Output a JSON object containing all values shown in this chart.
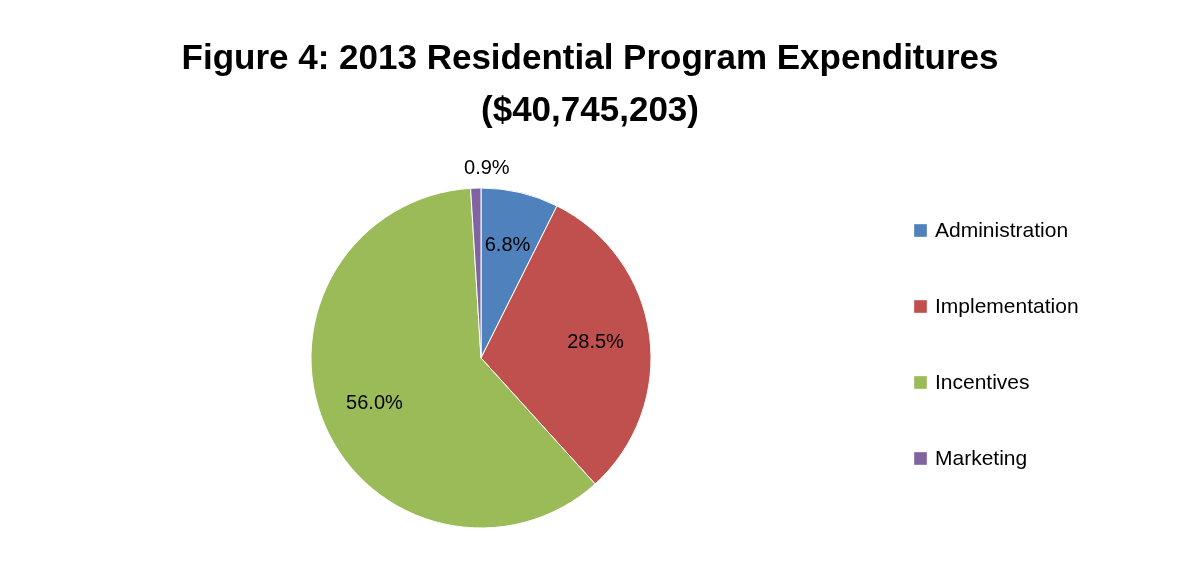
{
  "chart_data": {
    "type": "pie",
    "title": [
      "Figure 4: 2013 Residential Program Expenditures",
      "($40,745,203)"
    ],
    "categories": [
      "Administration",
      "Implementation",
      "Incentives",
      "Marketing"
    ],
    "values": [
      6.8,
      28.5,
      56.0,
      0.9
    ],
    "colors": [
      "#4f81bd",
      "#c0504d",
      "#9bbb59",
      "#8064a2"
    ],
    "value_labels": [
      "6.8%",
      "28.5%",
      "56.0%",
      "0.9%"
    ],
    "legend": "right"
  }
}
